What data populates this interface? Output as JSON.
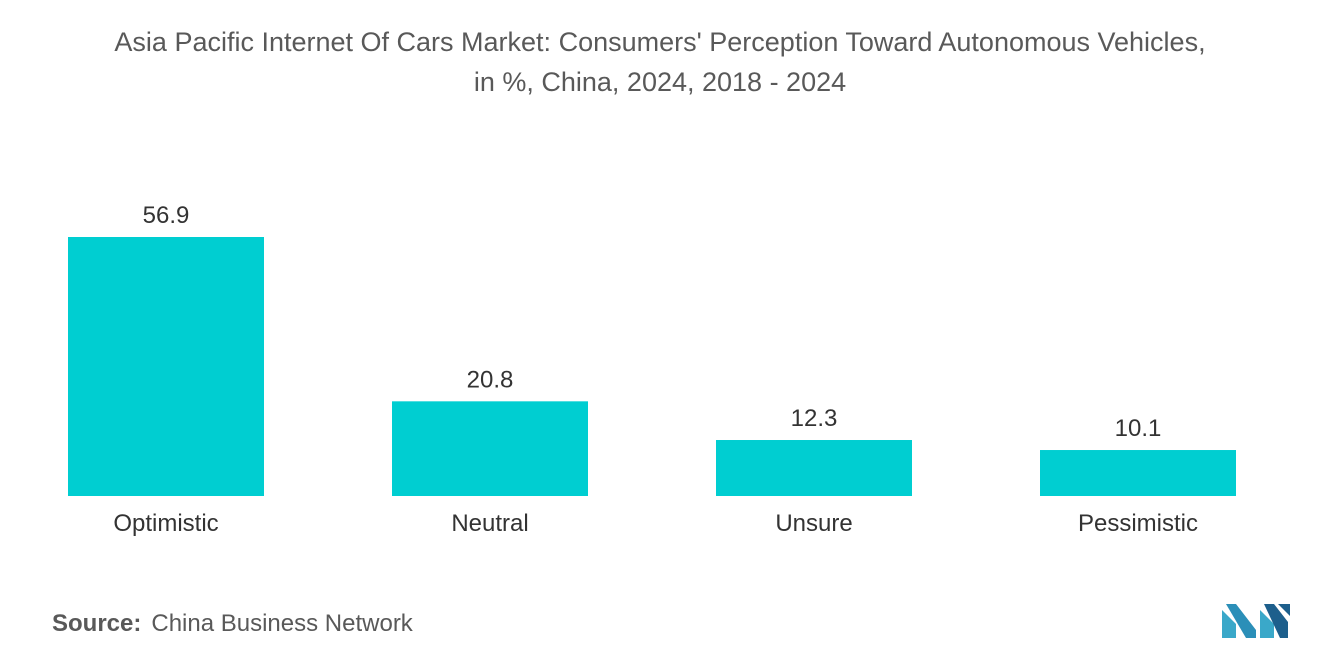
{
  "chart_data": {
    "type": "bar",
    "title_line1": "Asia Pacific Internet Of Cars Market: Consumers' Perception Toward Autonomous Vehicles,",
    "title_line2": "in %, China, 2024, 2018 - 2024",
    "categories": [
      "Optimistic",
      "Neutral",
      "Unsure",
      "Pessimistic"
    ],
    "values": [
      56.9,
      20.8,
      12.3,
      10.1
    ],
    "value_labels": [
      "56.9",
      "20.8",
      "12.3",
      "10.1"
    ],
    "xlabel": "",
    "ylabel": "",
    "ylim": [
      0,
      56.9
    ],
    "grid": false,
    "bar_color": "#00CED1"
  },
  "source": {
    "label": "Source:",
    "text": "China Business Network"
  },
  "logo": {
    "icon": "mordor-intelligence-logo-icon",
    "color_left": "#3aa8c9",
    "color_right": "#1d5f8c"
  }
}
